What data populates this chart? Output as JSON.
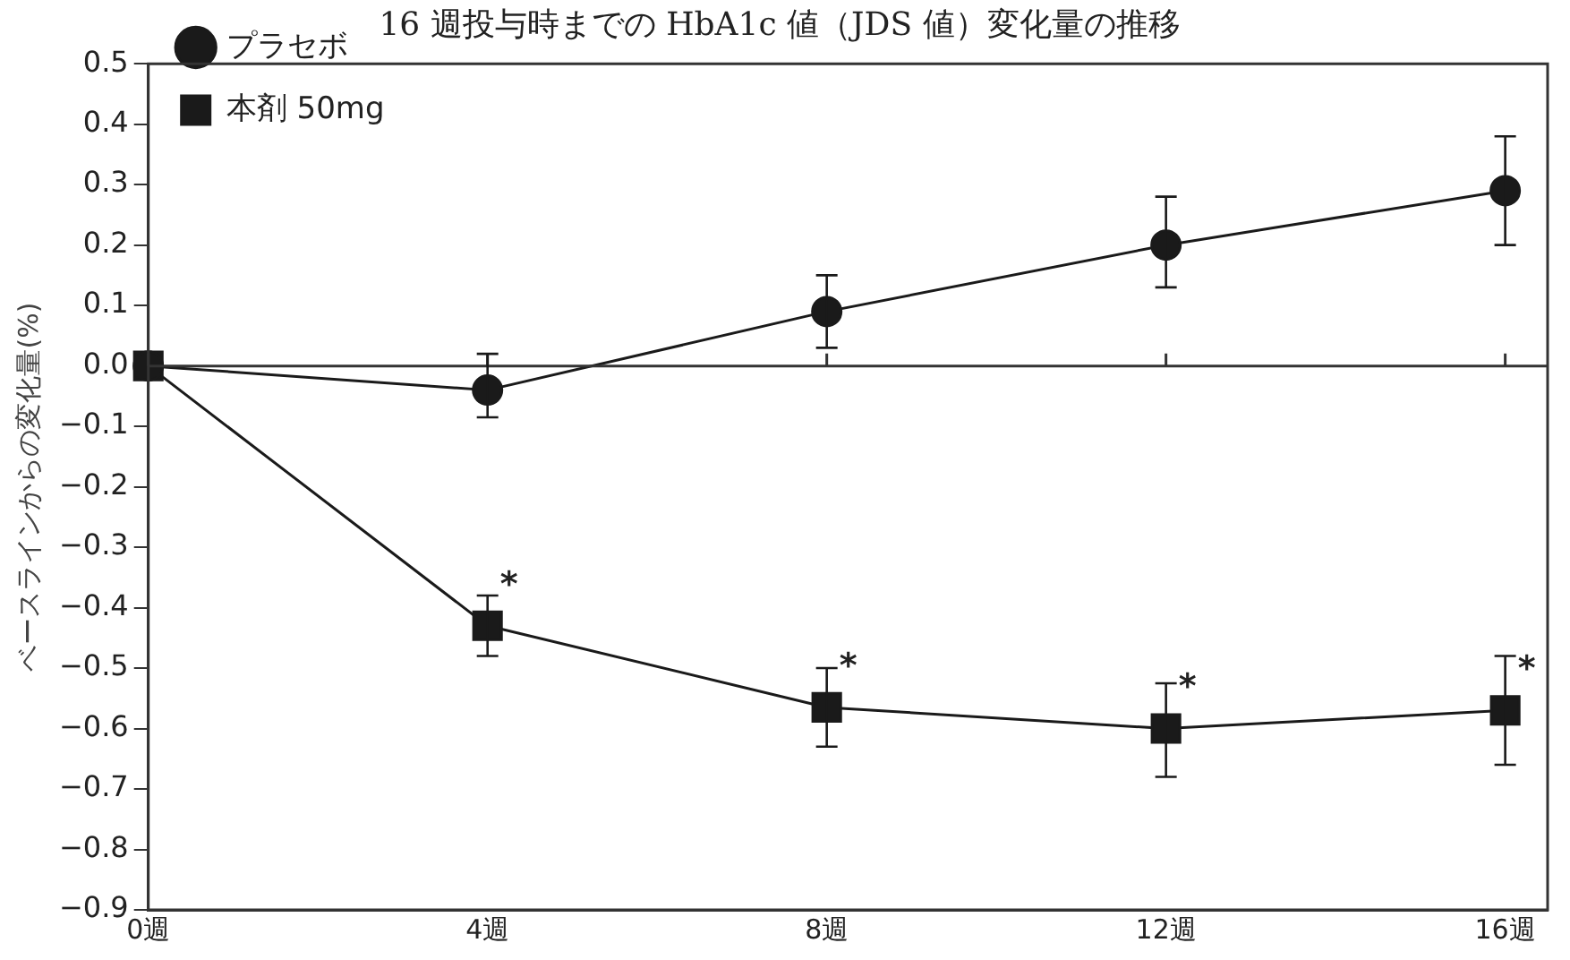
{
  "chart_data": {
    "type": "line",
    "title": "16 週投与時までの HbA1c 値（JDS 値）変化量の推移",
    "ylabel": "ベースラインからの変化量(%)",
    "x": [
      0,
      4,
      8,
      12,
      16
    ],
    "xlim": [
      0,
      16.5
    ],
    "xticks": [
      {
        "value": 0,
        "label": "0週"
      },
      {
        "value": 4,
        "label": "4週"
      },
      {
        "value": 8,
        "label": "8週"
      },
      {
        "value": 12,
        "label": "12週"
      },
      {
        "value": 16,
        "label": "16週"
      }
    ],
    "ylim": [
      -0.9,
      0.5
    ],
    "yticks": [
      {
        "value": 0.5,
        "label": "0.5"
      },
      {
        "value": 0.4,
        "label": "0.4"
      },
      {
        "value": 0.3,
        "label": "0.3"
      },
      {
        "value": 0.2,
        "label": "0.2"
      },
      {
        "value": 0.1,
        "label": "0.1"
      },
      {
        "value": 0,
        "label": "0.0"
      },
      {
        "value": -0.1,
        "label": "−0.1"
      },
      {
        "value": -0.2,
        "label": "−0.2"
      },
      {
        "value": -0.3,
        "label": "−0.3"
      },
      {
        "value": -0.4,
        "label": "−0.4"
      },
      {
        "value": -0.5,
        "label": "−0.5"
      },
      {
        "value": -0.6,
        "label": "−0.6"
      },
      {
        "value": -0.7,
        "label": "−0.7"
      },
      {
        "value": -0.8,
        "label": "−0.8"
      },
      {
        "value": -0.9,
        "label": "−0.9"
      }
    ],
    "series": [
      {
        "name": "プラセボ",
        "color": "#1a1a1a",
        "marker": "circle",
        "values": [
          0,
          -0.04,
          0.09,
          0.2,
          0.29
        ],
        "errors": [
          null,
          [
            -0.085,
            0.02
          ],
          [
            0.03,
            0.15
          ],
          [
            0.13,
            0.28
          ],
          [
            0.2,
            0.38
          ]
        ]
      },
      {
        "name": "本剤 50mg",
        "color": "#1a1a1a",
        "marker": "square",
        "values": [
          0,
          -0.43,
          -0.565,
          -0.6,
          -0.57
        ],
        "errors": [
          null,
          [
            -0.48,
            -0.38
          ],
          [
            -0.63,
            -0.5
          ],
          [
            -0.68,
            -0.525
          ],
          [
            -0.66,
            -0.48
          ]
        ]
      }
    ],
    "ref_lines": [
      {
        "axis": "y",
        "value": 0,
        "color": "#333333"
      }
    ],
    "annotations": [
      {
        "text": "*",
        "x": 4,
        "y": -0.43
      },
      {
        "text": "*",
        "x": 8,
        "y": -0.565
      },
      {
        "text": "*",
        "x": 12,
        "y": -0.6
      },
      {
        "text": "*",
        "x": 16,
        "y": -0.57
      }
    ],
    "grid": false,
    "legend": "top left",
    "line_style": "solid"
  }
}
